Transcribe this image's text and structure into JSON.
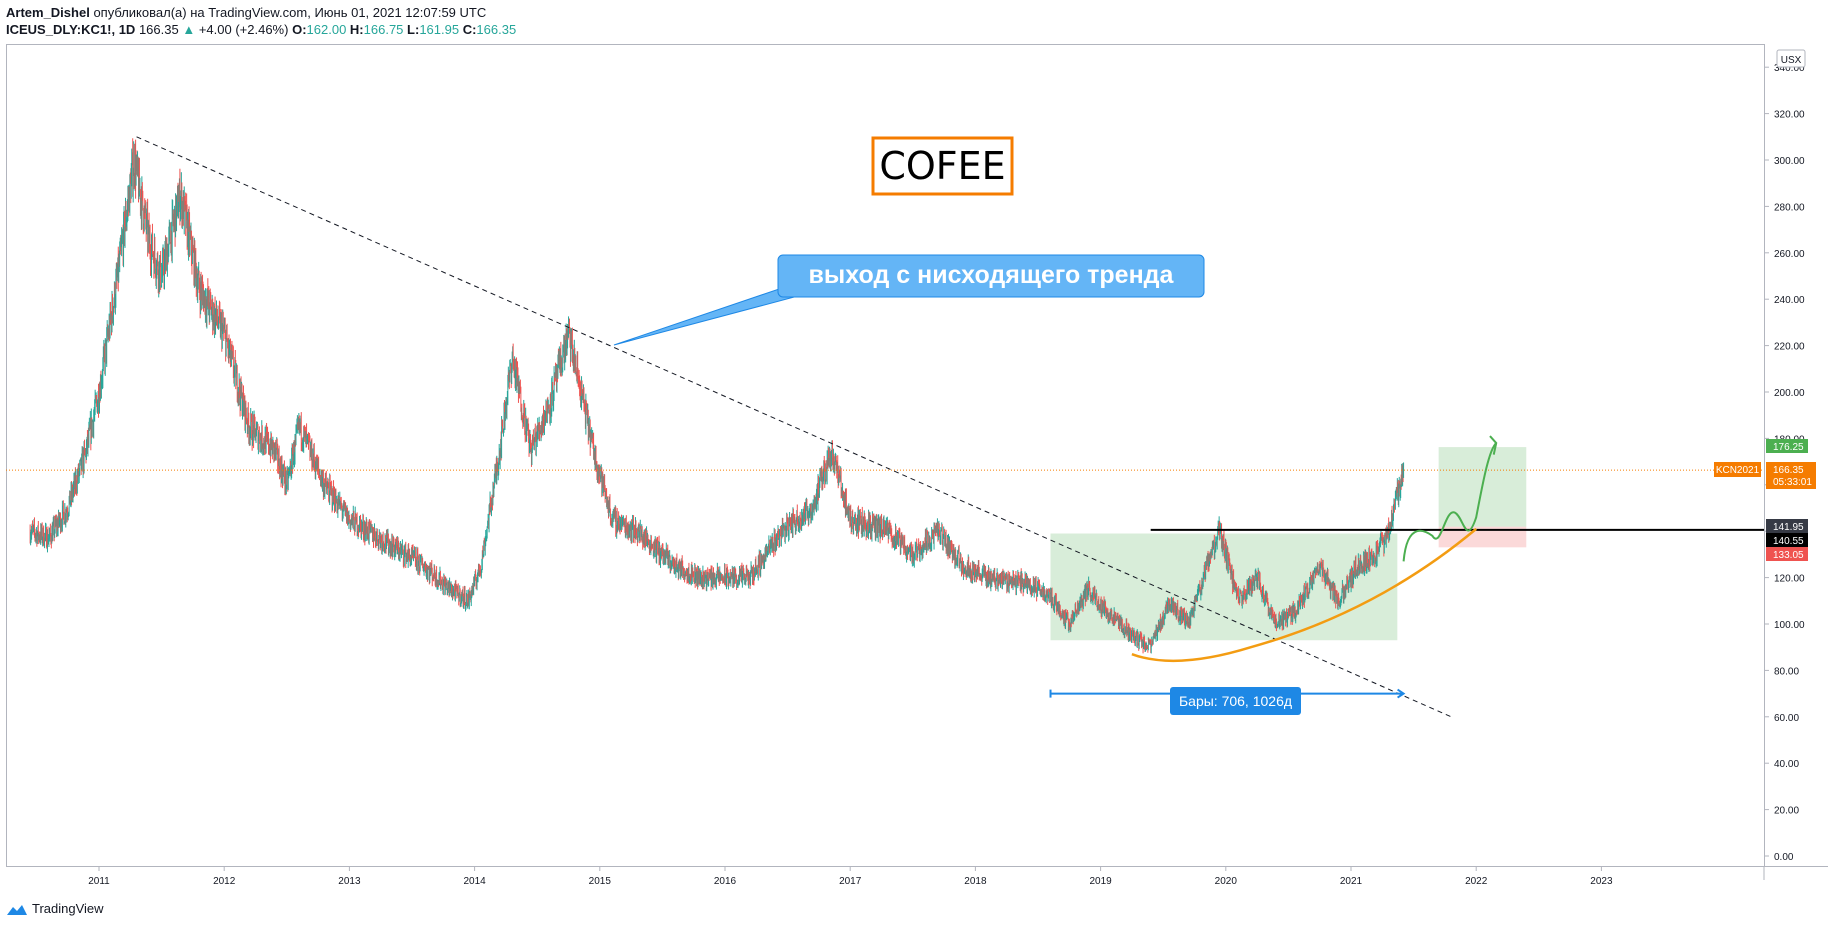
{
  "header": {
    "author": "Artem_Dishel",
    "published_text": "опубликовал(а) на TradingView.com, Июнь 01, 2021 12:07:59 UTC",
    "symbol": "ICEUS_DLY:KC1!, 1D",
    "last": "166.35",
    "change_arrow": "▲",
    "change": "+4.00 (+2.46%)",
    "o_label": "O:",
    "o_value": "162.00",
    "h_label": "H:",
    "h_value": "166.75",
    "l_label": "L:",
    "l_value": "161.95",
    "c_label": "C:",
    "c_value": "166.35"
  },
  "currency_badge": "USX",
  "brand": "TradingView",
  "annotations": {
    "title_box": "COFEE",
    "callout": "выход с нисходящего тренда",
    "range_label": "Бары: 706, 1026д"
  },
  "price_labels": {
    "symbol_tag": "KCN2021",
    "current": "166.35",
    "countdown": "05:33:01",
    "target": "176.25",
    "entry": "141.95",
    "level": "140.55",
    "stop": "133.05"
  },
  "colors": {
    "up": "#26a69a",
    "down": "#ef5350",
    "accent_orange": "#f57c00",
    "callout_blue": "#64b5f6",
    "range_blue": "#1e88e5",
    "profit_zone": "#4caf50",
    "loss_zone": "#ef5350"
  },
  "chart_data": {
    "type": "candlestick",
    "x_axis": {
      "tick_labels": [
        "2011",
        "2012",
        "2013",
        "2014",
        "2015",
        "2016",
        "2017",
        "2018",
        "2019",
        "2020",
        "2021",
        "2022",
        "2023"
      ]
    },
    "y_axis": {
      "tick_labels": [
        "0.00",
        "20.00",
        "40.00",
        "60.00",
        "80.00",
        "100.00",
        "120.00",
        "140.00",
        "160.00",
        "180.00",
        "200.00",
        "220.00",
        "240.00",
        "260.00",
        "280.00",
        "300.00",
        "320.00",
        "340.00"
      ],
      "range": [
        0,
        340
      ]
    },
    "approx_close_path": [
      {
        "date": "2010.45",
        "price": 140
      },
      {
        "date": "2010.6",
        "price": 137
      },
      {
        "date": "2010.75",
        "price": 150
      },
      {
        "date": "2010.9",
        "price": 175
      },
      {
        "date": "2011.0",
        "price": 200
      },
      {
        "date": "2011.15",
        "price": 250
      },
      {
        "date": "2011.28",
        "price": 300
      },
      {
        "date": "2011.4",
        "price": 265
      },
      {
        "date": "2011.5",
        "price": 250
      },
      {
        "date": "2011.65",
        "price": 285
      },
      {
        "date": "2011.8",
        "price": 245
      },
      {
        "date": "2012.0",
        "price": 225
      },
      {
        "date": "2012.2",
        "price": 185
      },
      {
        "date": "2012.4",
        "price": 175
      },
      {
        "date": "2012.5",
        "price": 160
      },
      {
        "date": "2012.6",
        "price": 185
      },
      {
        "date": "2012.8",
        "price": 160
      },
      {
        "date": "2013.0",
        "price": 145
      },
      {
        "date": "2013.3",
        "price": 135
      },
      {
        "date": "2013.6",
        "price": 125
      },
      {
        "date": "2013.8",
        "price": 115
      },
      {
        "date": "2013.95",
        "price": 110
      },
      {
        "date": "2014.05",
        "price": 125
      },
      {
        "date": "2014.2",
        "price": 175
      },
      {
        "date": "2014.3",
        "price": 215
      },
      {
        "date": "2014.45",
        "price": 175
      },
      {
        "date": "2014.6",
        "price": 195
      },
      {
        "date": "2014.75",
        "price": 225
      },
      {
        "date": "2014.95",
        "price": 175
      },
      {
        "date": "2015.1",
        "price": 145
      },
      {
        "date": "2015.3",
        "price": 140
      },
      {
        "date": "2015.6",
        "price": 125
      },
      {
        "date": "2015.8",
        "price": 120
      },
      {
        "date": "2016.0",
        "price": 120
      },
      {
        "date": "2016.2",
        "price": 120
      },
      {
        "date": "2016.45",
        "price": 140
      },
      {
        "date": "2016.7",
        "price": 150
      },
      {
        "date": "2016.85",
        "price": 175
      },
      {
        "date": "2017.0",
        "price": 145
      },
      {
        "date": "2017.3",
        "price": 140
      },
      {
        "date": "2017.5",
        "price": 130
      },
      {
        "date": "2017.7",
        "price": 140
      },
      {
        "date": "2017.9",
        "price": 125
      },
      {
        "date": "2018.1",
        "price": 120
      },
      {
        "date": "2018.4",
        "price": 118
      },
      {
        "date": "2018.6",
        "price": 112
      },
      {
        "date": "2018.75",
        "price": 100
      },
      {
        "date": "2018.9",
        "price": 115
      },
      {
        "date": "2019.05",
        "price": 105
      },
      {
        "date": "2019.25",
        "price": 95
      },
      {
        "date": "2019.4",
        "price": 90
      },
      {
        "date": "2019.55",
        "price": 110
      },
      {
        "date": "2019.7",
        "price": 100
      },
      {
        "date": "2019.85",
        "price": 125
      },
      {
        "date": "2019.95",
        "price": 140
      },
      {
        "date": "2020.1",
        "price": 110
      },
      {
        "date": "2020.25",
        "price": 120
      },
      {
        "date": "2020.4",
        "price": 100
      },
      {
        "date": "2020.55",
        "price": 105
      },
      {
        "date": "2020.75",
        "price": 125
      },
      {
        "date": "2020.9",
        "price": 110
      },
      {
        "date": "2021.05",
        "price": 125
      },
      {
        "date": "2021.2",
        "price": 130
      },
      {
        "date": "2021.3",
        "price": 140
      },
      {
        "date": "2021.42",
        "price": 166.35
      }
    ],
    "trendline": [
      {
        "date": "2011.3",
        "price": 310
      },
      {
        "date": "2021.8",
        "price": 60
      }
    ],
    "date_range_measure": {
      "from": "2018.6",
      "to": "2021.42",
      "bars": 706,
      "days": 1026
    },
    "position": {
      "from": "2021.7",
      "to": "2022.4",
      "entry": 141.95,
      "target": 176.25,
      "stop": 133.05
    },
    "consolidation_box": {
      "from": "2018.6",
      "to": "2021.37",
      "top": 139,
      "bottom": 93
    },
    "resistance_level": 140.55,
    "current_price": 166.35,
    "grid": false,
    "legend": "none"
  }
}
